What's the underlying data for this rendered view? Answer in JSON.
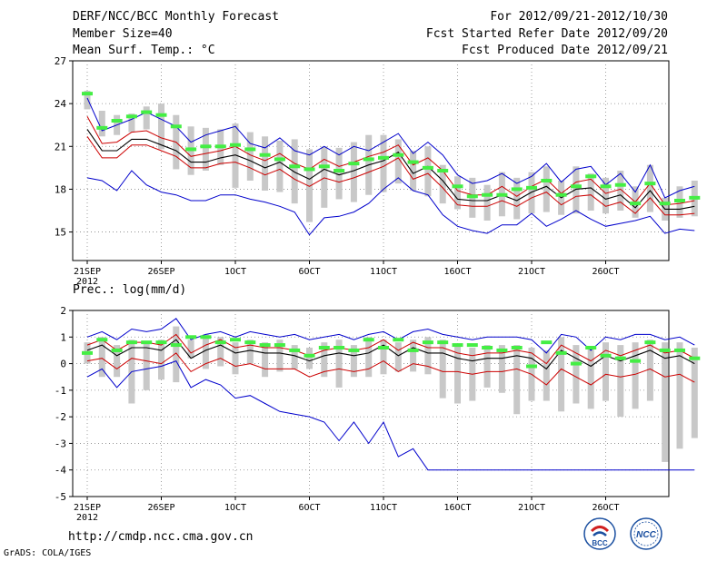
{
  "header": {
    "title": "DERF/NCC/BCC Monthly Forecast",
    "member_size": "Member Size=40",
    "variable": "Mean Surf. Temp.: °C",
    "period": "For 2012/09/21-2012/10/30",
    "started": "Fcst Started Refer Date 2012/09/20",
    "produced": "Fcst Produced Date 2012/09/21"
  },
  "footer": {
    "url": "http://cmdp.ncc.cma.gov.cn",
    "credit": "GrADS: COLA/IGES",
    "logo_bcc": "BCC",
    "logo_ncc": "NCC"
  },
  "colors": {
    "max_min": "#0000cc",
    "p90_p10": "#cc0000",
    "mean": "#000000",
    "bar": "#c8c8c8",
    "marker": "#44ee44"
  },
  "chart_data": [
    {
      "type": "line",
      "title": "Mean Surf. Temp.: °C",
      "ylim": [
        13,
        27
      ],
      "yticks": [
        15,
        18,
        21,
        24,
        27
      ],
      "xtick_labels": [
        "21SEP",
        "26SEP",
        "1OCT",
        "6OCT",
        "11OCT",
        "16OCT",
        "21OCT",
        "26OCT"
      ],
      "year_label": "2012",
      "grid": true,
      "series": [
        {
          "name": "max",
          "values": [
            24.4,
            22.1,
            22.5,
            22.9,
            23.4,
            22.9,
            22.4,
            21.3,
            21.8,
            22.1,
            22.4,
            21.2,
            20.9,
            21.6,
            20.7,
            20.4,
            21.0,
            20.4,
            21.0,
            20.7,
            21.3,
            21.9,
            20.5,
            21.3,
            20.4,
            19.0,
            18.4,
            18.6,
            19.1,
            18.4,
            18.9,
            19.8,
            18.5,
            19.4,
            19.6,
            18.3,
            19.1,
            17.8,
            19.7,
            17.4,
            17.9,
            18.2
          ]
        },
        {
          "name": "p90",
          "values": [
            23.1,
            21.2,
            21.3,
            22.0,
            22.1,
            21.6,
            21.3,
            20.3,
            20.5,
            20.7,
            21.0,
            20.4,
            20.0,
            20.5,
            19.8,
            19.4,
            20.1,
            19.6,
            19.9,
            20.3,
            20.6,
            21.1,
            19.7,
            20.2,
            19.3,
            17.9,
            17.6,
            17.6,
            18.2,
            17.5,
            18.2,
            18.7,
            17.7,
            18.5,
            18.7,
            17.7,
            18.0,
            17.1,
            18.4,
            16.9,
            17.0,
            17.2
          ]
        },
        {
          "name": "mean",
          "values": [
            22.2,
            20.7,
            20.7,
            21.5,
            21.5,
            21.1,
            20.7,
            19.9,
            19.9,
            20.2,
            20.4,
            20.0,
            19.5,
            19.9,
            19.2,
            18.7,
            19.4,
            19.0,
            19.3,
            19.7,
            20.0,
            20.6,
            19.1,
            19.6,
            18.6,
            17.3,
            17.2,
            17.2,
            17.6,
            17.2,
            17.8,
            18.2,
            17.4,
            18.0,
            18.1,
            17.3,
            17.6,
            16.7,
            17.9,
            16.6,
            16.6,
            16.8
          ]
        },
        {
          "name": "p10",
          "values": [
            21.7,
            20.2,
            20.2,
            21.1,
            21.1,
            20.7,
            20.3,
            19.5,
            19.5,
            19.8,
            19.9,
            19.5,
            19.0,
            19.4,
            18.7,
            18.2,
            18.8,
            18.5,
            18.8,
            19.2,
            19.6,
            20.2,
            18.7,
            19.1,
            18.1,
            16.9,
            16.8,
            16.8,
            17.2,
            16.8,
            17.4,
            17.8,
            16.9,
            17.5,
            17.6,
            16.8,
            17.1,
            16.3,
            17.4,
            16.2,
            16.2,
            16.3
          ]
        },
        {
          "name": "min",
          "values": [
            18.8,
            18.6,
            17.9,
            19.3,
            18.3,
            17.8,
            17.6,
            17.2,
            17.2,
            17.6,
            17.6,
            17.3,
            17.1,
            16.8,
            16.4,
            14.8,
            16.0,
            16.1,
            16.4,
            17.0,
            18.0,
            18.8,
            17.9,
            17.6,
            16.2,
            15.4,
            15.1,
            14.9,
            15.5,
            15.5,
            16.3,
            15.4,
            15.9,
            16.5,
            15.9,
            15.4,
            15.6,
            15.8,
            16.1,
            14.9,
            15.2,
            15.1
          ]
        },
        {
          "name": "marker",
          "values": [
            24.7,
            22.3,
            22.8,
            23.1,
            23.4,
            23.2,
            22.4,
            20.8,
            21.0,
            21.0,
            21.1,
            20.8,
            20.4,
            20.1,
            19.6,
            19.4,
            19.6,
            19.3,
            19.8,
            20.1,
            20.2,
            20.4,
            19.9,
            19.5,
            19.3,
            18.2,
            17.5,
            17.6,
            17.6,
            18.0,
            18.1,
            18.6,
            17.6,
            18.2,
            18.9,
            18.2,
            18.3,
            17.0,
            18.4,
            17.0,
            17.2,
            17.4
          ]
        },
        {
          "name": "bar_top",
          "values": [
            24.9,
            23.5,
            23.2,
            23.3,
            23.8,
            24.0,
            23.2,
            22.4,
            22.3,
            22.2,
            22.6,
            22.0,
            21.7,
            21.4,
            21.5,
            20.8,
            21.0,
            20.9,
            21.3,
            21.8,
            21.8,
            21.5,
            20.7,
            21.0,
            19.7,
            18.9,
            18.8,
            18.3,
            19.2,
            18.8,
            19.2,
            19.6,
            18.6,
            19.6,
            19.1,
            18.8,
            19.3,
            18.2,
            19.7,
            17.4,
            18.2,
            18.6
          ]
        },
        {
          "name": "bar_bottom",
          "values": [
            23.6,
            21.7,
            21.8,
            22.0,
            22.2,
            20.8,
            19.4,
            19.0,
            19.3,
            19.7,
            18.1,
            18.6,
            17.9,
            17.8,
            17.0,
            15.7,
            16.7,
            17.3,
            17.1,
            17.6,
            17.8,
            18.4,
            17.9,
            17.5,
            17.0,
            16.6,
            16.0,
            15.8,
            16.1,
            15.9,
            16.3,
            16.4,
            16.2,
            16.3,
            16.5,
            16.3,
            16.5,
            16.0,
            16.4,
            15.8,
            16.0,
            16.1
          ]
        }
      ]
    },
    {
      "type": "line",
      "title": "Prec.: log(mm/d)",
      "ylim": [
        -5,
        2
      ],
      "yticks": [
        -5,
        -4,
        -3,
        -2,
        -1,
        0,
        1,
        2
      ],
      "xtick_labels": [
        "21SEP",
        "26SEP",
        "1OCT",
        "6OCT",
        "11OCT",
        "16OCT",
        "21OCT",
        "26OCT"
      ],
      "year_label": "2012",
      "grid": true,
      "series": [
        {
          "name": "max",
          "values": [
            1.0,
            1.2,
            0.9,
            1.3,
            1.2,
            1.3,
            1.7,
            0.9,
            1.1,
            1.2,
            1.0,
            1.2,
            1.1,
            1.0,
            1.1,
            0.9,
            1.0,
            1.1,
            0.9,
            1.1,
            1.2,
            0.9,
            1.2,
            1.3,
            1.1,
            1.0,
            0.9,
            1.0,
            1.0,
            1.0,
            0.9,
            0.4,
            1.1,
            1.0,
            0.5,
            1.0,
            0.9,
            1.1,
            1.1,
            0.9,
            1.0,
            0.7
          ]
        },
        {
          "name": "p90",
          "values": [
            0.7,
            0.9,
            0.5,
            0.8,
            0.8,
            0.7,
            1.1,
            0.4,
            0.7,
            0.9,
            0.6,
            0.7,
            0.6,
            0.6,
            0.5,
            0.3,
            0.5,
            0.6,
            0.5,
            0.6,
            0.9,
            0.5,
            0.8,
            0.6,
            0.6,
            0.4,
            0.3,
            0.4,
            0.4,
            0.5,
            0.4,
            0.0,
            0.7,
            0.4,
            0.1,
            0.5,
            0.3,
            0.5,
            0.7,
            0.4,
            0.5,
            0.2
          ]
        },
        {
          "name": "mean",
          "values": [
            0.5,
            0.7,
            0.3,
            0.6,
            0.6,
            0.5,
            0.9,
            0.2,
            0.5,
            0.7,
            0.4,
            0.5,
            0.4,
            0.4,
            0.3,
            0.1,
            0.3,
            0.4,
            0.3,
            0.4,
            0.7,
            0.3,
            0.6,
            0.4,
            0.4,
            0.2,
            0.1,
            0.2,
            0.2,
            0.3,
            0.2,
            -0.2,
            0.5,
            0.2,
            -0.1,
            0.3,
            0.1,
            0.3,
            0.5,
            0.2,
            0.3,
            0.0
          ]
        },
        {
          "name": "p10",
          "values": [
            0.1,
            0.2,
            -0.2,
            0.2,
            0.1,
            0.0,
            0.4,
            -0.3,
            0.0,
            0.2,
            -0.1,
            0.0,
            -0.2,
            -0.2,
            -0.2,
            -0.5,
            -0.3,
            -0.2,
            -0.3,
            -0.2,
            0.1,
            -0.3,
            0.0,
            -0.1,
            -0.3,
            -0.3,
            -0.4,
            -0.3,
            -0.3,
            -0.2,
            -0.4,
            -0.8,
            -0.2,
            -0.5,
            -0.8,
            -0.4,
            -0.5,
            -0.4,
            -0.2,
            -0.5,
            -0.4,
            -0.7
          ]
        },
        {
          "name": "min",
          "values": [
            -0.5,
            -0.2,
            -0.9,
            -0.3,
            -0.2,
            -0.1,
            0.1,
            -0.9,
            -0.6,
            -0.8,
            -1.3,
            -1.2,
            -1.5,
            -1.8,
            -1.9,
            -2.0,
            -2.2,
            -2.9,
            -2.2,
            -3.0,
            -2.2,
            -3.5,
            -3.2,
            -4.0,
            -4.0,
            -4.0,
            -4.0,
            -4.0,
            -4.0,
            -4.0,
            -4.0,
            -4.0,
            -4.0,
            -4.0,
            -4.0,
            -4.0,
            -4.0,
            -4.0,
            -4.0,
            -4.0,
            -4.0,
            -4.0
          ]
        },
        {
          "name": "marker",
          "values": [
            0.4,
            0.9,
            0.5,
            0.8,
            0.8,
            0.8,
            0.7,
            1.0,
            1.0,
            0.8,
            0.9,
            0.8,
            0.7,
            0.7,
            0.5,
            0.3,
            0.6,
            0.6,
            0.5,
            0.9,
            0.6,
            0.9,
            0.5,
            0.8,
            0.8,
            0.7,
            0.7,
            0.6,
            0.5,
            0.6,
            -0.1,
            0.8,
            0.4,
            0.0,
            0.6,
            0.3,
            0.2,
            0.1,
            0.8,
            0.5,
            0.5,
            0.2
          ]
        },
        {
          "name": "bar_top",
          "values": [
            0.8,
            1.0,
            0.7,
            0.9,
            0.8,
            0.9,
            1.4,
            0.9,
            1.1,
            1.0,
            0.8,
            0.9,
            0.8,
            0.9,
            0.7,
            0.6,
            0.8,
            0.9,
            0.7,
            1.0,
            0.9,
            0.8,
            0.9,
            1.0,
            0.9,
            0.7,
            0.6,
            0.7,
            0.7,
            0.7,
            0.6,
            0.5,
            1.0,
            0.7,
            0.6,
            0.8,
            0.7,
            0.8,
            0.9,
            0.8,
            0.8,
            0.6
          ]
        },
        {
          "name": "bar_bottom",
          "values": [
            0.0,
            -0.5,
            -0.5,
            -1.5,
            -1.0,
            -0.6,
            -0.7,
            0.2,
            -0.2,
            -0.1,
            -0.4,
            0.0,
            -0.5,
            -0.3,
            -0.2,
            -0.2,
            -0.5,
            -0.9,
            -0.5,
            -0.5,
            -0.4,
            -0.3,
            -0.3,
            -0.4,
            -1.3,
            -1.5,
            -1.4,
            -0.9,
            -1.1,
            -1.9,
            -1.4,
            -1.4,
            -1.8,
            -1.5,
            -1.7,
            -1.4,
            -2.0,
            -1.7,
            -1.4,
            -3.7,
            -3.2,
            -2.8
          ]
        }
      ]
    }
  ]
}
